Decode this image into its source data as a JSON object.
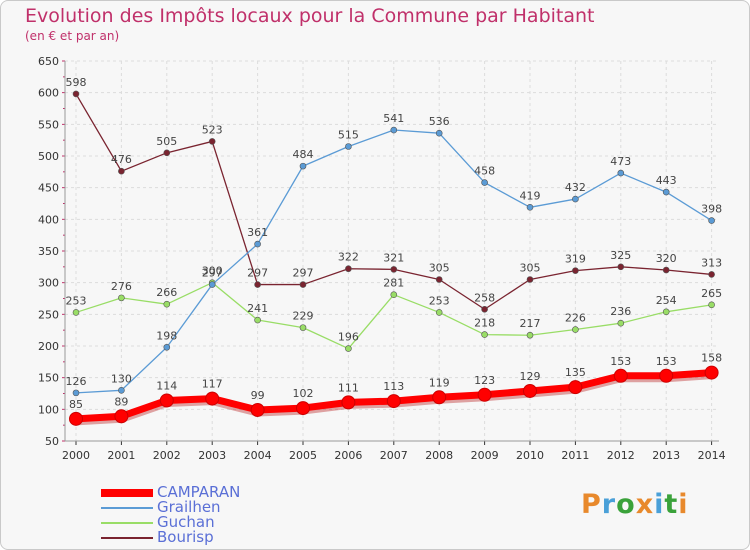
{
  "header": {
    "title": "Evolution des Impôts locaux pour la Commune par Habitant",
    "subtitle": "(en € et par an)"
  },
  "logo": {
    "text": "Proxiti",
    "colors": [
      "#e8892c",
      "#4aa0d8",
      "#3aa23a",
      "#e8892c",
      "#4aa0d8",
      "#3aa23a",
      "#e8892c"
    ]
  },
  "chart_data": {
    "type": "line",
    "x": [
      "2000",
      "2001",
      "2002",
      "2003",
      "2004",
      "2005",
      "2006",
      "2007",
      "2008",
      "2009",
      "2010",
      "2011",
      "2012",
      "2013",
      "2014"
    ],
    "ylim": [
      50,
      650
    ],
    "yticks": [
      "50",
      "100",
      "150",
      "200",
      "250",
      "300",
      "350",
      "400",
      "450",
      "500",
      "550",
      "600",
      "650"
    ],
    "grid": true,
    "legend_position": "bottom-left",
    "series": [
      {
        "name": "CAMPARAN",
        "color": "#ff0000",
        "values": [
          85,
          89,
          114,
          117,
          99,
          102,
          111,
          113,
          119,
          123,
          129,
          135,
          153,
          153,
          158
        ],
        "labels": [
          "85",
          "89",
          "114",
          "117",
          "99",
          "102",
          "111",
          "113",
          "119",
          "123",
          "129",
          "135",
          "153",
          "153",
          "158"
        ]
      },
      {
        "name": "Grailhen",
        "color": "#5b9bd5",
        "values": [
          126,
          130,
          198,
          297,
          361,
          484,
          515,
          541,
          536,
          458,
          419,
          432,
          473,
          443,
          398
        ],
        "labels": [
          "126",
          "130",
          "198",
          "297",
          "361",
          "484",
          "515",
          "541",
          "536",
          "458",
          "419",
          "432",
          "473",
          "443",
          "398"
        ]
      },
      {
        "name": "Guchan",
        "color": "#99dd66",
        "values": [
          253,
          276,
          266,
          300,
          241,
          229,
          196,
          281,
          253,
          218,
          217,
          226,
          236,
          254,
          265
        ],
        "labels": [
          "253",
          "276",
          "266",
          "300",
          "241",
          "229",
          "196",
          "281",
          "253",
          "218",
          "217",
          "226",
          "236",
          "254",
          "265"
        ]
      },
      {
        "name": "Bourisp",
        "color": "#7a2430",
        "values": [
          598,
          476,
          505,
          523,
          297,
          297,
          322,
          321,
          305,
          258,
          305,
          319,
          325,
          320,
          313
        ],
        "labels": [
          "598",
          "476",
          "505",
          "523",
          "297",
          "297",
          "322",
          "321",
          "305",
          "258",
          "305",
          "319",
          "325",
          "320",
          "313"
        ]
      }
    ]
  }
}
